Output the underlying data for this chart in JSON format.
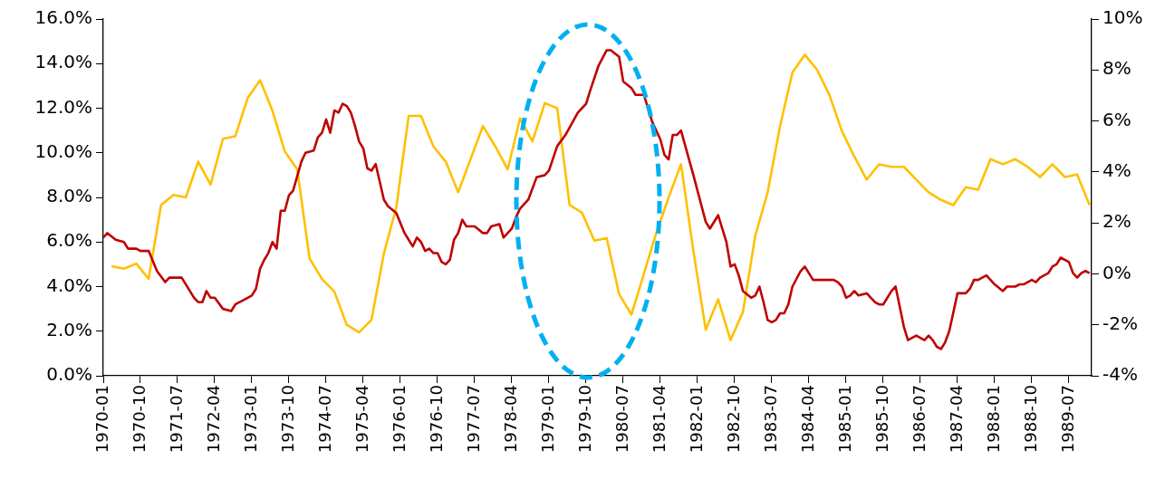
{
  "chart_data": {
    "type": "line",
    "grid": false,
    "marker": "none",
    "line_style": "solid",
    "xlim": [
      "1970-01",
      "1989-12"
    ],
    "xticks": [
      "1970-01",
      "1970-10",
      "1971-07",
      "1972-04",
      "1973-01",
      "1973-10",
      "1974-07",
      "1975-04",
      "1976-01",
      "1976-10",
      "1977-07",
      "1978-04",
      "1979-01",
      "1979-10",
      "1980-07",
      "1981-04",
      "1982-01",
      "1982-10",
      "1983-07",
      "1984-04",
      "1985-01",
      "1985-10",
      "1986-07",
      "1987-04",
      "1988-01",
      "1988-10",
      "1989-07"
    ],
    "ylim": [
      0,
      16
    ],
    "yticks": [
      {
        "value": 0,
        "label": "0.0%"
      },
      {
        "value": 2,
        "label": "2.0%"
      },
      {
        "value": 4,
        "label": "4.0%"
      },
      {
        "value": 6,
        "label": "6.0%"
      },
      {
        "value": 8,
        "label": "8.0%"
      },
      {
        "value": 10,
        "label": "10.0%"
      },
      {
        "value": 12,
        "label": "12.0%"
      },
      {
        "value": 14,
        "label": "14.0%"
      },
      {
        "value": 16,
        "label": "16.0%"
      }
    ],
    "y2lim": [
      -4,
      10
    ],
    "y2ticks": [
      {
        "value": -4,
        "label": "-4%"
      },
      {
        "value": -2,
        "label": "-2%"
      },
      {
        "value": 0,
        "label": "0%"
      },
      {
        "value": 2,
        "label": "2%"
      },
      {
        "value": 4,
        "label": "4%"
      },
      {
        "value": 6,
        "label": "6%"
      },
      {
        "value": 8,
        "label": "8%"
      },
      {
        "value": 10,
        "label": "10%"
      }
    ],
    "series": [
      {
        "color": "#c00000",
        "x": [
          "1970-01",
          "1970-02",
          "1970-04",
          "1970-06",
          "1970-07",
          "1970-09",
          "1970-10",
          "1970-12",
          "1971-02",
          "1971-04",
          "1971-05",
          "1971-08",
          "1971-11",
          "1971-12",
          "1972-01",
          "1972-02",
          "1972-03",
          "1972-04",
          "1972-06",
          "1972-08",
          "1972-09",
          "1972-11",
          "1973-01",
          "1973-02",
          "1973-03",
          "1973-04",
          "1973-05",
          "1973-06",
          "1973-07",
          "1973-08",
          "1973-09",
          "1973-10",
          "1973-11",
          "1974-01",
          "1974-02",
          "1974-04",
          "1974-05",
          "1974-06",
          "1974-07",
          "1974-08",
          "1974-09",
          "1974-10",
          "1974-11",
          "1974-12",
          "1975-01",
          "1975-02",
          "1975-03",
          "1975-04",
          "1975-05",
          "1975-06",
          "1975-07",
          "1975-08",
          "1975-09",
          "1975-10",
          "1975-12",
          "1976-02",
          "1976-03",
          "1976-04",
          "1976-05",
          "1976-06",
          "1976-07",
          "1976-08",
          "1976-09",
          "1976-10",
          "1976-11",
          "1976-12",
          "1977-01",
          "1977-02",
          "1977-03",
          "1977-04",
          "1977-05",
          "1977-07",
          "1977-09",
          "1977-10",
          "1977-11",
          "1978-01",
          "1978-02",
          "1978-03",
          "1978-04",
          "1978-05",
          "1978-06",
          "1978-08",
          "1978-10",
          "1978-12",
          "1979-01",
          "1979-03",
          "1979-05",
          "1979-08",
          "1979-09",
          "1979-10",
          "1979-11",
          "1980-01",
          "1980-03",
          "1980-04",
          "1980-06",
          "1980-07",
          "1980-09",
          "1980-10",
          "1980-12",
          "1981-02",
          "1981-04",
          "1981-05",
          "1981-06",
          "1981-07",
          "1981-08",
          "1981-09",
          "1981-12",
          "1982-03",
          "1982-04",
          "1982-06",
          "1982-08",
          "1982-09",
          "1982-10",
          "1982-11",
          "1982-12",
          "1983-02",
          "1983-03",
          "1983-04",
          "1983-05",
          "1983-06",
          "1983-07",
          "1983-08",
          "1983-09",
          "1983-10",
          "1983-11",
          "1983-12",
          "1984-02",
          "1984-03",
          "1984-05",
          "1984-10",
          "1984-11",
          "1984-12",
          "1985-01",
          "1985-02",
          "1985-03",
          "1985-04",
          "1985-06",
          "1985-07",
          "1985-08",
          "1985-09",
          "1985-10",
          "1985-12",
          "1986-01",
          "1986-03",
          "1986-04",
          "1986-06",
          "1986-08",
          "1986-09",
          "1986-10",
          "1986-11",
          "1986-12",
          "1987-01",
          "1987-02",
          "1987-04",
          "1987-06",
          "1987-07",
          "1987-08",
          "1987-09",
          "1987-11",
          "1988-01",
          "1988-03",
          "1988-04",
          "1988-06",
          "1988-07",
          "1988-08",
          "1988-10",
          "1988-11",
          "1988-12",
          "1989-02",
          "1989-03",
          "1989-04",
          "1989-05",
          "1989-07",
          "1989-08",
          "1989-09",
          "1989-10",
          "1989-11",
          "1989-12"
        ],
        "values": [
          6.2,
          6.4,
          6.1,
          6.0,
          5.7,
          5.7,
          5.6,
          5.6,
          4.7,
          4.2,
          4.4,
          4.4,
          3.5,
          3.3,
          3.3,
          3.8,
          3.5,
          3.5,
          3.0,
          2.9,
          3.2,
          3.4,
          3.6,
          3.9,
          4.8,
          5.2,
          5.5,
          6.0,
          5.7,
          7.4,
          7.4,
          8.1,
          8.3,
          9.6,
          10.0,
          10.1,
          10.7,
          10.9,
          11.5,
          10.9,
          11.9,
          11.8,
          12.2,
          12.1,
          11.8,
          11.2,
          10.5,
          10.2,
          9.3,
          9.2,
          9.5,
          8.7,
          7.9,
          7.6,
          7.3,
          6.4,
          6.1,
          5.8,
          6.2,
          6.0,
          5.6,
          5.7,
          5.5,
          5.5,
          5.1,
          5.0,
          5.2,
          6.1,
          6.4,
          7.0,
          6.7,
          6.7,
          6.4,
          6.4,
          6.7,
          6.8,
          6.2,
          6.4,
          6.6,
          7.1,
          7.5,
          7.9,
          8.9,
          9.0,
          9.2,
          10.3,
          10.8,
          11.8,
          12.0,
          12.2,
          12.8,
          13.9,
          14.6,
          14.6,
          14.3,
          13.2,
          12.9,
          12.6,
          12.6,
          11.4,
          10.6,
          9.9,
          9.7,
          10.8,
          10.8,
          11.0,
          9.0,
          6.9,
          6.6,
          7.2,
          6.0,
          4.9,
          5.0,
          4.5,
          3.8,
          3.5,
          3.6,
          4.0,
          3.3,
          2.5,
          2.4,
          2.5,
          2.8,
          2.8,
          3.2,
          4.0,
          4.7,
          4.9,
          4.3,
          4.3,
          4.2,
          4.0,
          3.5,
          3.6,
          3.8,
          3.6,
          3.7,
          3.5,
          3.3,
          3.2,
          3.2,
          3.8,
          4.0,
          2.2,
          1.6,
          1.8,
          1.6,
          1.8,
          1.6,
          1.3,
          1.2,
          1.5,
          2.0,
          3.7,
          3.7,
          3.9,
          4.3,
          4.3,
          4.5,
          4.1,
          3.8,
          4.0,
          4.0,
          4.1,
          4.1,
          4.3,
          4.2,
          4.4,
          4.6,
          4.9,
          5.0,
          5.3,
          5.1,
          4.6,
          4.4,
          4.6,
          4.7,
          4.6
        ]
      },
      {
        "color": "#ffc000",
        "axis": "y2",
        "x": [
          "1970-03",
          "1970-06",
          "1970-09",
          "1970-12",
          "1971-03",
          "1971-06",
          "1971-09",
          "1971-12",
          "1972-03",
          "1972-06",
          "1972-09",
          "1972-12",
          "1973-03",
          "1973-06",
          "1973-09",
          "1973-12",
          "1974-03",
          "1974-06",
          "1974-09",
          "1974-12",
          "1975-03",
          "1975-06",
          "1975-09",
          "1975-12",
          "1976-03",
          "1976-06",
          "1976-09",
          "1976-12",
          "1977-03",
          "1977-06",
          "1977-09",
          "1977-12",
          "1978-03",
          "1978-06",
          "1978-09",
          "1978-12",
          "1979-03",
          "1979-06",
          "1979-09",
          "1979-12",
          "1980-03",
          "1980-06",
          "1980-09",
          "1980-12",
          "1981-03",
          "1981-06",
          "1981-09",
          "1981-12",
          "1982-03",
          "1982-06",
          "1982-09",
          "1982-12",
          "1983-03",
          "1983-06",
          "1983-09",
          "1983-12",
          "1984-03",
          "1984-06",
          "1984-09",
          "1984-12",
          "1985-03",
          "1985-06",
          "1985-09",
          "1985-12",
          "1986-03",
          "1986-06",
          "1986-09",
          "1986-12",
          "1987-03",
          "1987-06",
          "1987-09",
          "1987-12",
          "1988-03",
          "1988-06",
          "1988-09",
          "1988-12",
          "1989-03",
          "1989-06",
          "1989-09",
          "1989-12"
        ],
        "values": [
          0.3,
          0.2,
          0.4,
          -0.2,
          2.7,
          3.1,
          3.0,
          4.4,
          3.5,
          5.3,
          5.4,
          6.9,
          7.6,
          6.4,
          4.8,
          4.1,
          0.6,
          -0.2,
          -0.7,
          -2.0,
          -2.3,
          -1.8,
          0.8,
          2.6,
          6.2,
          6.2,
          5.0,
          4.4,
          3.2,
          4.5,
          5.8,
          5.0,
          4.1,
          6.1,
          5.2,
          6.7,
          6.5,
          2.7,
          2.4,
          1.3,
          1.4,
          -0.8,
          -1.6,
          0.0,
          1.6,
          3.0,
          4.3,
          0.9,
          -2.2,
          -1.0,
          -2.6,
          -1.5,
          1.5,
          3.2,
          5.8,
          7.9,
          8.6,
          8.0,
          7.0,
          5.6,
          4.6,
          3.7,
          4.3,
          4.2,
          4.2,
          3.7,
          3.2,
          2.9,
          2.7,
          3.4,
          3.3,
          4.5,
          4.3,
          4.5,
          4.2,
          3.8,
          4.3,
          3.8,
          3.9,
          2.7
        ]
      }
    ]
  }
}
